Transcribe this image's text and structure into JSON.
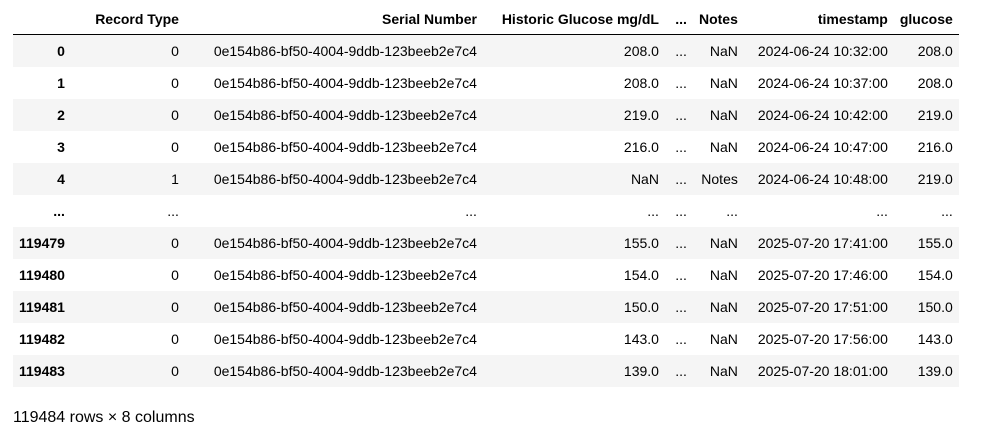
{
  "table": {
    "columns": [
      "Record Type",
      "Serial Number",
      "Historic Glucose mg/dL",
      "...",
      "Notes",
      "timestamp",
      "glucose"
    ],
    "rows": [
      {
        "index": "0",
        "cells": [
          "0",
          "0e154b86-bf50-4004-9ddb-123beeb2e7c4",
          "208.0",
          "...",
          "NaN",
          "2024-06-24 10:32:00",
          "208.0"
        ]
      },
      {
        "index": "1",
        "cells": [
          "0",
          "0e154b86-bf50-4004-9ddb-123beeb2e7c4",
          "208.0",
          "...",
          "NaN",
          "2024-06-24 10:37:00",
          "208.0"
        ]
      },
      {
        "index": "2",
        "cells": [
          "0",
          "0e154b86-bf50-4004-9ddb-123beeb2e7c4",
          "219.0",
          "...",
          "NaN",
          "2024-06-24 10:42:00",
          "219.0"
        ]
      },
      {
        "index": "3",
        "cells": [
          "0",
          "0e154b86-bf50-4004-9ddb-123beeb2e7c4",
          "216.0",
          "...",
          "NaN",
          "2024-06-24 10:47:00",
          "216.0"
        ]
      },
      {
        "index": "4",
        "cells": [
          "1",
          "0e154b86-bf50-4004-9ddb-123beeb2e7c4",
          "NaN",
          "...",
          "Notes",
          "2024-06-24 10:48:00",
          "219.0"
        ]
      },
      {
        "index": "...",
        "cells": [
          "...",
          "...",
          "...",
          "...",
          "...",
          "...",
          "..."
        ]
      },
      {
        "index": "119479",
        "cells": [
          "0",
          "0e154b86-bf50-4004-9ddb-123beeb2e7c4",
          "155.0",
          "...",
          "NaN",
          "2025-07-20 17:41:00",
          "155.0"
        ]
      },
      {
        "index": "119480",
        "cells": [
          "0",
          "0e154b86-bf50-4004-9ddb-123beeb2e7c4",
          "154.0",
          "...",
          "NaN",
          "2025-07-20 17:46:00",
          "154.0"
        ]
      },
      {
        "index": "119481",
        "cells": [
          "0",
          "0e154b86-bf50-4004-9ddb-123beeb2e7c4",
          "150.0",
          "...",
          "NaN",
          "2025-07-20 17:51:00",
          "150.0"
        ]
      },
      {
        "index": "119482",
        "cells": [
          "0",
          "0e154b86-bf50-4004-9ddb-123beeb2e7c4",
          "143.0",
          "...",
          "NaN",
          "2025-07-20 17:56:00",
          "143.0"
        ]
      },
      {
        "index": "119483",
        "cells": [
          "0",
          "0e154b86-bf50-4004-9ddb-123beeb2e7c4",
          "139.0",
          "...",
          "NaN",
          "2025-07-20 18:01:00",
          "139.0"
        ]
      }
    ]
  },
  "footer": {
    "shape_text": "119484 rows × 8 columns"
  },
  "colors": {
    "stripe": "#f5f5f5",
    "background": "#ffffff",
    "text": "#000000"
  }
}
